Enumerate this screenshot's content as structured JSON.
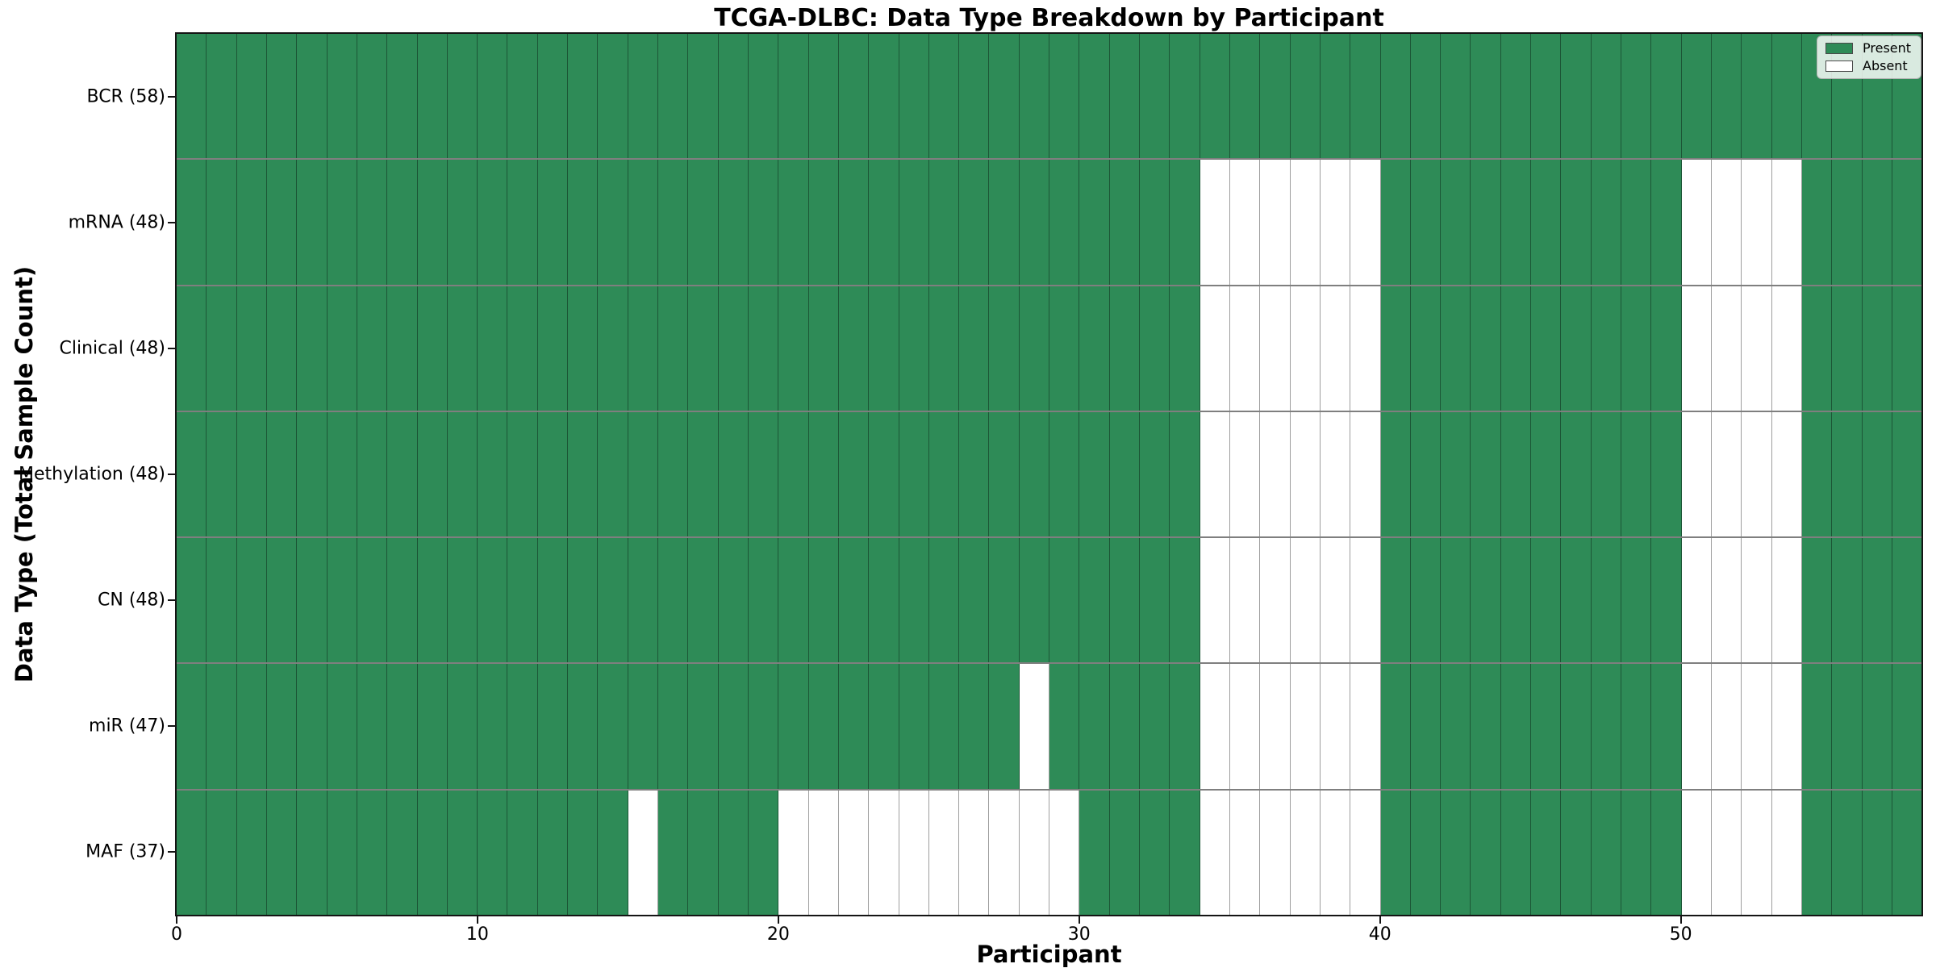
{
  "chart_data": {
    "type": "heatmap",
    "title": "TCGA-DLBC: Data Type Breakdown by Participant",
    "xlabel": "Participant",
    "ylabel": "Data Type (Total Sample Count)",
    "n_participants": 58,
    "x_axis": {
      "range": [
        0,
        58
      ],
      "ticks": [
        0,
        10,
        20,
        30,
        40,
        50
      ]
    },
    "colors": {
      "present": "#2e8b57",
      "absent": "#ffffff"
    },
    "legend": [
      {
        "label": "Present",
        "color": "#2e8b57"
      },
      {
        "label": "Absent",
        "color": "#ffffff"
      }
    ],
    "rows": [
      {
        "label": "BCR (58)",
        "data_type": "BCR",
        "total": 58,
        "absent_participants": []
      },
      {
        "label": "mRNA (48)",
        "data_type": "mRNA",
        "total": 48,
        "absent_participants": [
          34,
          35,
          36,
          37,
          38,
          39,
          50,
          51,
          52,
          53
        ]
      },
      {
        "label": "Clinical (48)",
        "data_type": "Clinical",
        "total": 48,
        "absent_participants": [
          34,
          35,
          36,
          37,
          38,
          39,
          50,
          51,
          52,
          53
        ]
      },
      {
        "label": "Methylation (48)",
        "data_type": "Methylation",
        "total": 48,
        "absent_participants": [
          34,
          35,
          36,
          37,
          38,
          39,
          50,
          51,
          52,
          53
        ]
      },
      {
        "label": "CN (48)",
        "data_type": "CN",
        "total": 48,
        "absent_participants": [
          34,
          35,
          36,
          37,
          38,
          39,
          50,
          51,
          52,
          53
        ]
      },
      {
        "label": "miR (47)",
        "data_type": "miR",
        "total": 47,
        "absent_participants": [
          28,
          34,
          35,
          36,
          37,
          38,
          39,
          50,
          51,
          52,
          53
        ]
      },
      {
        "label": "MAF (37)",
        "data_type": "MAF",
        "total": 37,
        "absent_participants": [
          15,
          20,
          21,
          22,
          23,
          24,
          25,
          26,
          27,
          28,
          29,
          34,
          35,
          36,
          37,
          38,
          39,
          50,
          51,
          52,
          53
        ]
      }
    ]
  }
}
